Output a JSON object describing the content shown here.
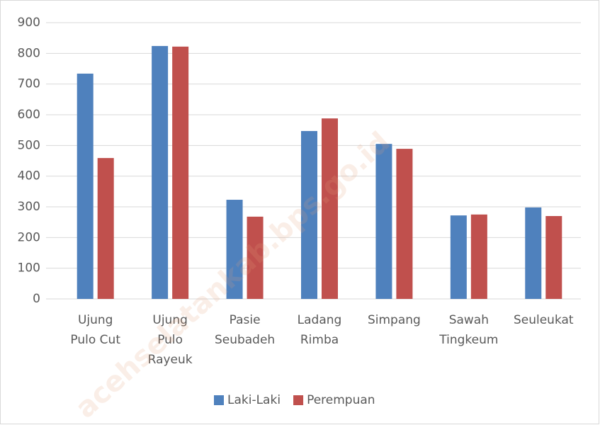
{
  "chart_data": {
    "type": "bar",
    "categories": [
      "Ujung Pulo Cut",
      "Ujung Pulo Rayeuk",
      "Pasie Seubadeh",
      "Ladang Rimba",
      "Simpang",
      "Sawah Tingkeum",
      "Seuleukat"
    ],
    "series": [
      {
        "name": "Laki-Laki",
        "color": "#4f81bd",
        "values": [
          734,
          824,
          323,
          547,
          505,
          272,
          298
        ]
      },
      {
        "name": "Perempuan",
        "color": "#c0504d",
        "values": [
          459,
          822,
          268,
          588,
          489,
          275,
          270
        ]
      }
    ],
    "ylim": [
      0,
      900
    ],
    "yticks": [
      0,
      100,
      200,
      300,
      400,
      500,
      600,
      700,
      800,
      900
    ],
    "grid": true,
    "legend": "bottom",
    "watermark": "acehselatankab.bps.go.id"
  }
}
